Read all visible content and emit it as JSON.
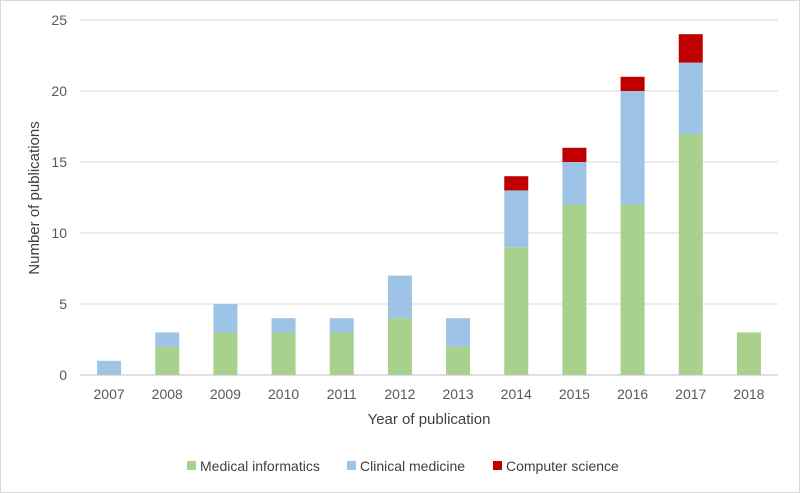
{
  "chart_data": {
    "type": "bar",
    "stacked": true,
    "title": "",
    "xlabel": "Year of publication",
    "ylabel": "Number of publications",
    "ylim": [
      0,
      25
    ],
    "yticks": [
      0,
      5,
      10,
      15,
      20,
      25
    ],
    "grid": "horizontal",
    "legend_position": "bottom",
    "categories": [
      "2007",
      "2008",
      "2009",
      "2010",
      "2011",
      "2012",
      "2013",
      "2014",
      "2015",
      "2016",
      "2017",
      "2018"
    ],
    "series": [
      {
        "name": "Medical informatics",
        "color": "#a9d18e",
        "values": [
          0,
          2,
          3,
          3,
          3,
          4,
          2,
          9,
          12,
          12,
          17,
          3
        ]
      },
      {
        "name": "Clinical medicine",
        "color": "#9dc3e6",
        "values": [
          1,
          1,
          2,
          1,
          1,
          3,
          2,
          4,
          3,
          8,
          5,
          0
        ]
      },
      {
        "name": "Computer science",
        "color": "#c00000",
        "values": [
          0,
          0,
          0,
          0,
          0,
          0,
          0,
          1,
          1,
          1,
          2,
          0
        ]
      }
    ]
  }
}
